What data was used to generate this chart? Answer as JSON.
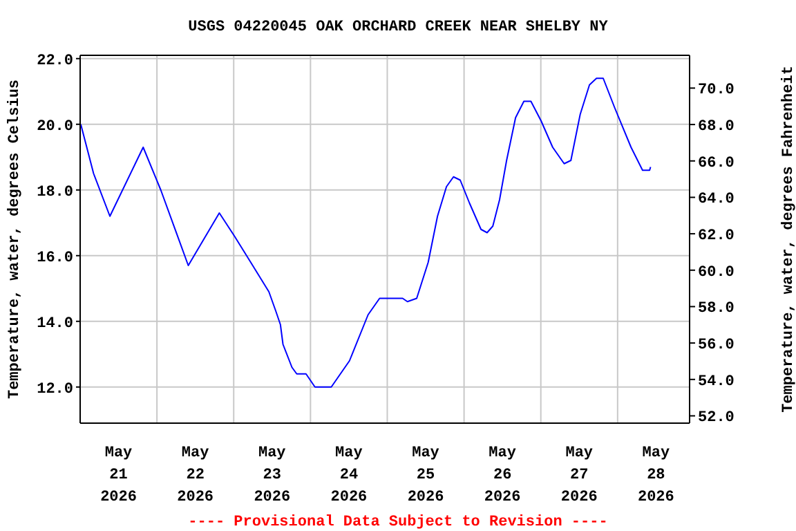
{
  "chart_data": {
    "type": "line",
    "title": "USGS 04220045 OAK ORCHARD CREEK NEAR SHELBY NY",
    "ylabel": "Temperature, water, degrees Celsius",
    "y2label": "Temperature, water, degrees Fahrenheit",
    "annotations": [
      "---- Provisional Data Subject to Revision ----"
    ],
    "x": [
      "2026-05-21T00:12",
      "2026-05-21T04:12",
      "2026-05-21T09:18",
      "2026-05-21T19:42",
      "2026-05-22T01:12",
      "2026-05-22T09:48",
      "2026-05-22T19:30",
      "2026-05-23T00:12",
      "2026-05-23T05:18",
      "2026-05-23T11:00",
      "2026-05-23T13:12",
      "2026-05-23T14:36",
      "2026-05-23T15:24",
      "2026-05-23T18:12",
      "2026-05-23T19:42",
      "2026-05-23T22:36",
      "2026-05-24T01:24",
      "2026-05-24T06:30",
      "2026-05-24T12:12",
      "2026-05-24T18:00",
      "2026-05-24T21:36",
      "2026-05-25T04:48",
      "2026-05-25T06:18",
      "2026-05-25T09:12",
      "2026-05-25T12:48",
      "2026-05-25T15:42",
      "2026-05-25T18:30",
      "2026-05-25T20:42",
      "2026-05-25T22:48",
      "2026-05-26T01:42",
      "2026-05-26T05:18",
      "2026-05-26T07:12",
      "2026-05-26T09:00",
      "2026-05-26T11:06",
      "2026-05-26T13:18",
      "2026-05-26T16:06",
      "2026-05-26T18:42",
      "2026-05-26T20:54",
      "2026-05-27T00:06",
      "2026-05-27T03:42",
      "2026-05-27T07:18",
      "2026-05-27T09:24",
      "2026-05-27T12:18",
      "2026-05-27T15:12",
      "2026-05-27T17:24",
      "2026-05-27T19:30",
      "2026-05-27T23:06",
      "2026-05-28T04:12",
      "2026-05-28T07:48",
      "2026-05-28T10:00",
      "2026-05-28T10:18"
    ],
    "series": [
      {
        "color": "#0000ff",
        "values": [
          20.0,
          18.5,
          17.2,
          19.3,
          18.0,
          15.7,
          17.3,
          16.6,
          15.8,
          14.9,
          14.3,
          13.9,
          13.3,
          12.6,
          12.4,
          12.4,
          12.0,
          12.0,
          12.8,
          14.2,
          14.7,
          14.7,
          14.6,
          14.7,
          15.8,
          17.2,
          18.1,
          18.4,
          18.3,
          17.6,
          16.8,
          16.7,
          16.9,
          17.7,
          18.9,
          20.2,
          20.7,
          20.7,
          20.1,
          19.3,
          18.8,
          18.9,
          20.3,
          21.2,
          21.4,
          21.4,
          20.5,
          19.3,
          18.6,
          18.6,
          18.7
        ]
      }
    ],
    "xlim": [
      "2026-05-21T00:00",
      "2026-05-28T22:30"
    ],
    "xticks": [
      {
        "value": "2026-05-21T12:00",
        "label": "May\n21\n2026"
      },
      {
        "value": "2026-05-22T00:00",
        "label": null
      },
      {
        "value": "2026-05-22T12:00",
        "label": "May\n22\n2026"
      },
      {
        "value": "2026-05-23T00:00",
        "label": null
      },
      {
        "value": "2026-05-23T12:00",
        "label": "May\n23\n2026"
      },
      {
        "value": "2026-05-24T00:00",
        "label": null
      },
      {
        "value": "2026-05-24T12:00",
        "label": "May\n24\n2026"
      },
      {
        "value": "2026-05-25T00:00",
        "label": null
      },
      {
        "value": "2026-05-25T12:00",
        "label": "May\n25\n2026"
      },
      {
        "value": "2026-05-26T00:00",
        "label": null
      },
      {
        "value": "2026-05-26T12:00",
        "label": "May\n26\n2026"
      },
      {
        "value": "2026-05-27T00:00",
        "label": null
      },
      {
        "value": "2026-05-27T12:00",
        "label": "May\n27\n2026"
      },
      {
        "value": "2026-05-28T00:00",
        "label": null
      },
      {
        "value": "2026-05-28T12:00",
        "label": "May\n28\n2026"
      }
    ],
    "ylim": [
      10.9,
      22.1
    ],
    "yticks": [
      {
        "value": 12,
        "label": "12.0"
      },
      {
        "value": 14,
        "label": "14.0"
      },
      {
        "value": 16,
        "label": "16.0"
      },
      {
        "value": 18,
        "label": "18.0"
      },
      {
        "value": 20,
        "label": "20.0"
      },
      {
        "value": 22,
        "label": "22.0"
      }
    ],
    "y2lim": [
      51.6,
      71.8
    ],
    "y2ticks": [
      {
        "value": 52,
        "label": "52.0"
      },
      {
        "value": 54,
        "label": "54.0"
      },
      {
        "value": 56,
        "label": "56.0"
      },
      {
        "value": 58,
        "label": "58.0"
      },
      {
        "value": 60,
        "label": "60.0"
      },
      {
        "value": 62,
        "label": "62.0"
      },
      {
        "value": 64,
        "label": "64.0"
      },
      {
        "value": 66,
        "label": "66.0"
      },
      {
        "value": 68,
        "label": "68.0"
      },
      {
        "value": 70,
        "label": "70.0"
      }
    ],
    "grid": true,
    "legend": false,
    "marker": "none",
    "line_style": "solid"
  }
}
